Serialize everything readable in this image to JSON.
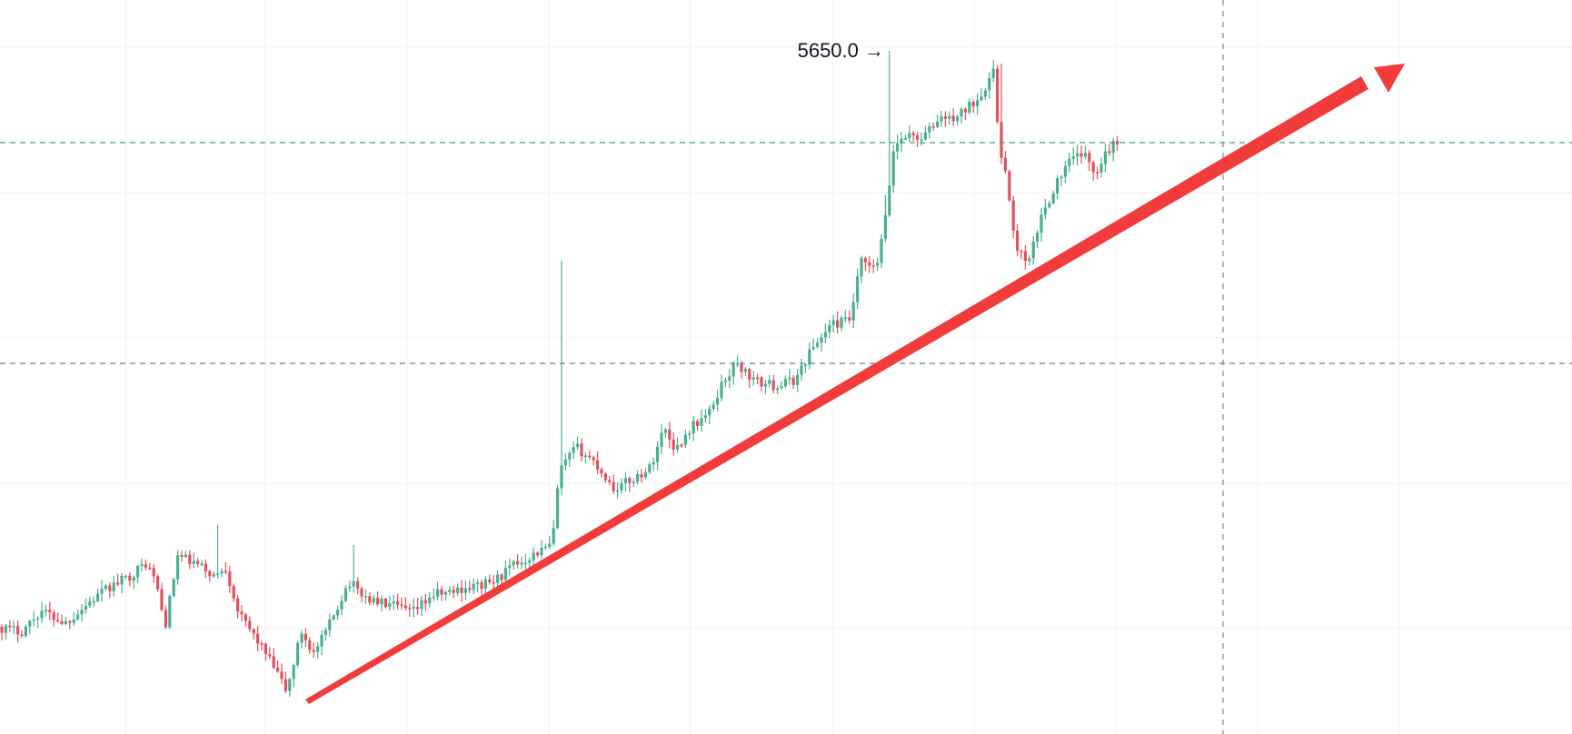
{
  "chart_data": {
    "type": "candlestick",
    "grid": true,
    "colors": {
      "up": "#4CAF8E",
      "down": "#E0535E",
      "trendline": "#F23C3C",
      "level_green": "#3F9E7E",
      "level_gray": "#7A7A7A",
      "crosshair": "#8A8A8A",
      "grid": "#F2F3F5",
      "annotation": "#131722"
    },
    "annotations": [
      {
        "id": "high",
        "label": "5650.0 →",
        "price": 5650.0
      }
    ]
  }
}
